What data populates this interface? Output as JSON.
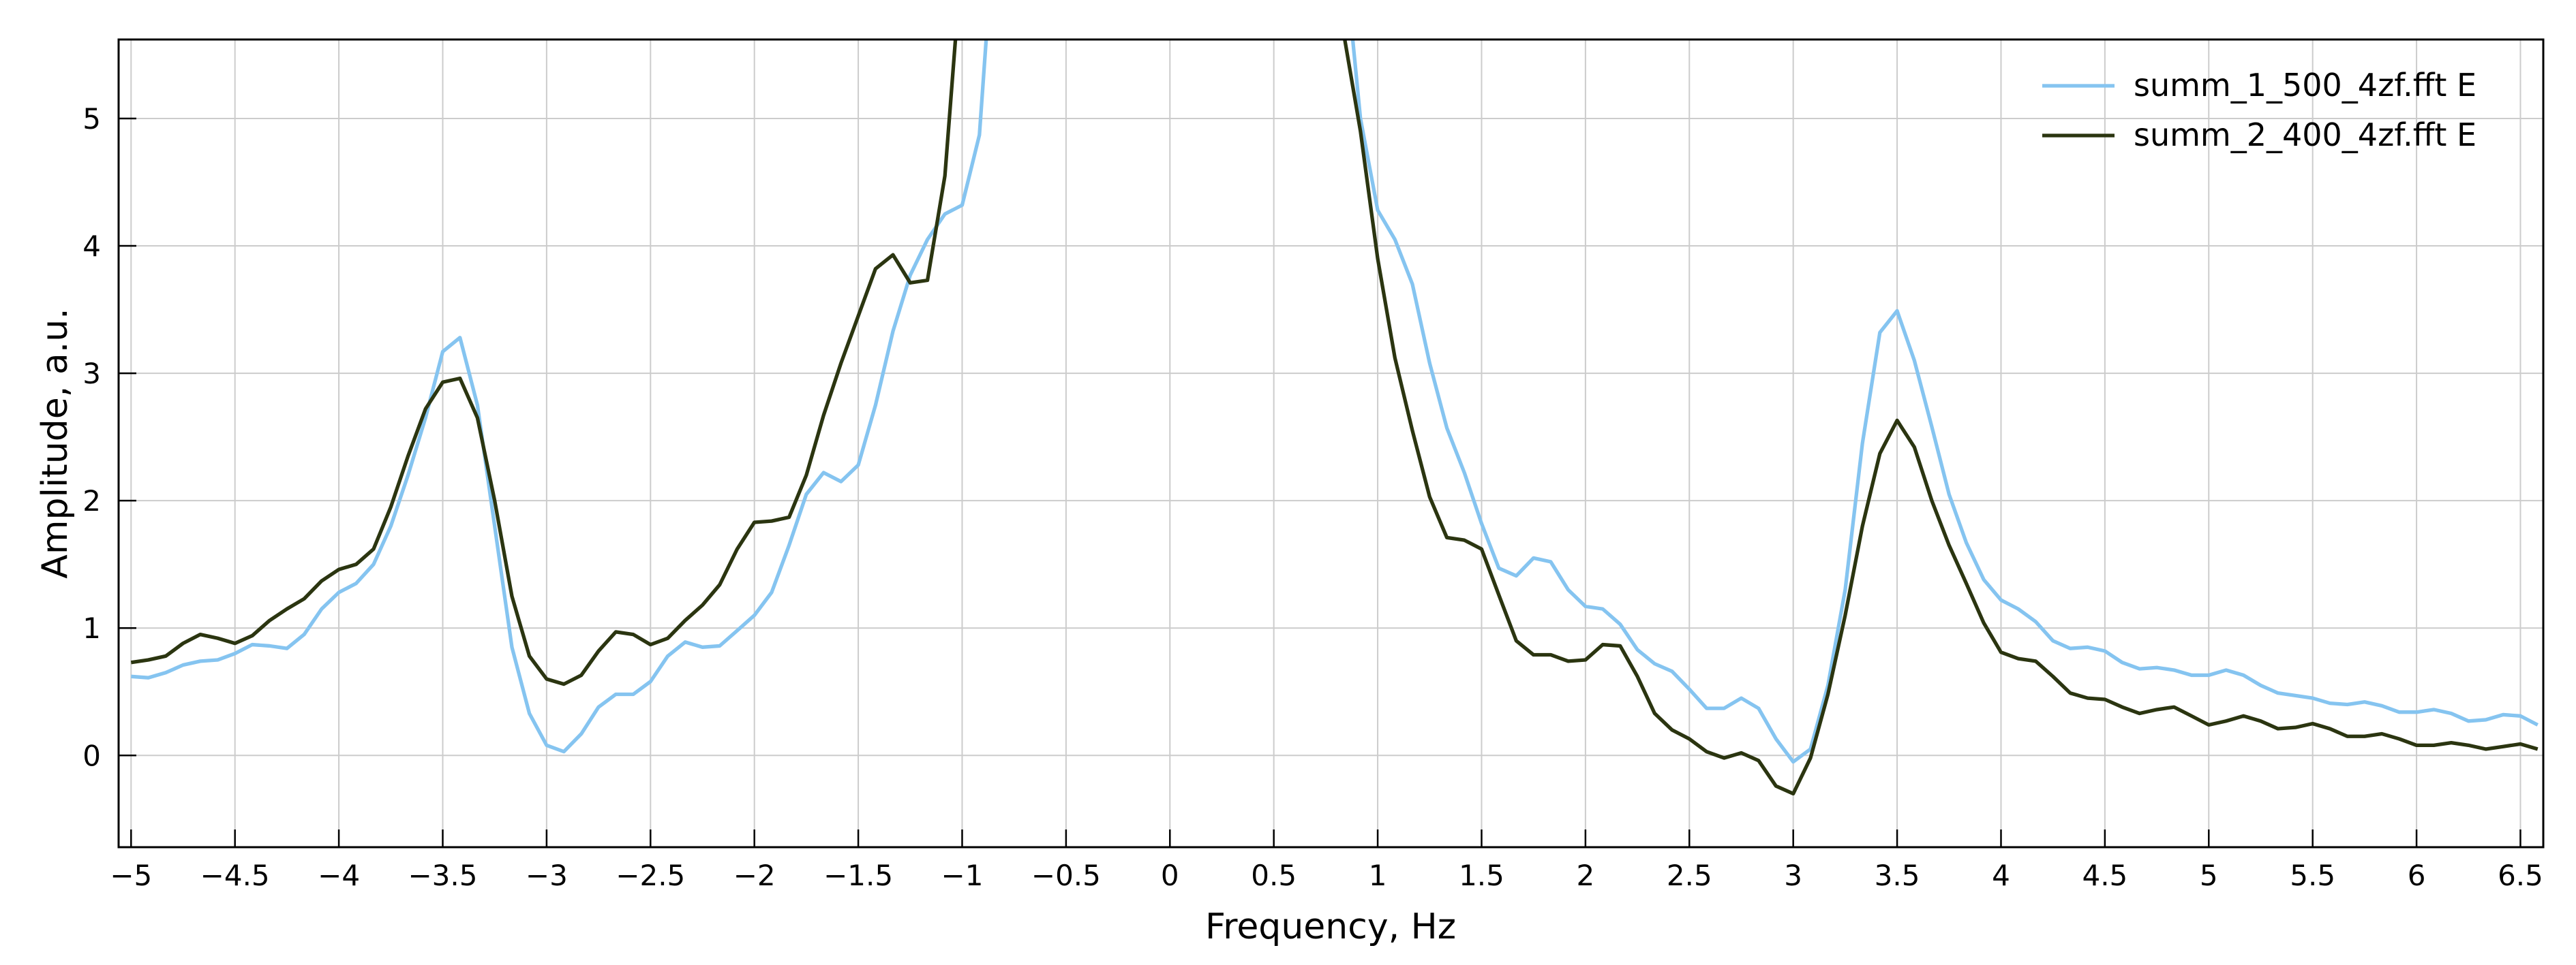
{
  "chart_data": {
    "type": "line",
    "xlabel": "Frequency, Hz",
    "ylabel": "Amplitude, a.u.",
    "x": [
      -5,
      -4.917,
      -4.833,
      -4.75,
      -4.667,
      -4.583,
      -4.5,
      -4.417,
      -4.333,
      -4.25,
      -4.167,
      -4.083,
      -4,
      -3.917,
      -3.833,
      -3.75,
      -3.667,
      -3.583,
      -3.5,
      -3.417,
      -3.333,
      -3.25,
      -3.167,
      -3.083,
      -3,
      -2.917,
      -2.833,
      -2.75,
      -2.667,
      -2.583,
      -2.5,
      -2.417,
      -2.333,
      -2.25,
      -2.167,
      -2.083,
      -2,
      -1.917,
      -1.833,
      -1.75,
      -1.667,
      -1.583,
      -1.5,
      -1.417,
      -1.333,
      -1.25,
      -1.167,
      -1.083,
      -1,
      -0.917,
      -0.833,
      -0.75,
      -0.667,
      -0.583,
      -0.5,
      -0.417,
      -0.333,
      -0.25,
      -0.167,
      -0.083,
      0,
      0.083,
      0.167,
      0.25,
      0.333,
      0.417,
      0.5,
      0.583,
      0.667,
      0.75,
      0.833,
      0.917,
      1,
      1.083,
      1.167,
      1.25,
      1.333,
      1.417,
      1.5,
      1.583,
      1.667,
      1.75,
      1.833,
      1.917,
      2,
      2.083,
      2.167,
      2.25,
      2.333,
      2.417,
      2.5,
      2.583,
      2.667,
      2.75,
      2.833,
      2.917,
      3,
      3.083,
      3.167,
      3.25,
      3.333,
      3.417,
      3.5,
      3.583,
      3.667,
      3.75,
      3.833,
      3.917,
      4,
      4.083,
      4.167,
      4.25,
      4.333,
      4.417,
      4.5,
      4.583,
      4.667,
      4.75,
      4.833,
      4.917,
      5,
      5.083,
      5.167,
      5.25,
      5.333,
      5.417,
      5.5,
      5.583,
      5.667,
      5.75,
      5.833,
      5.917,
      6,
      6.083,
      6.167,
      6.25,
      6.333,
      6.417,
      6.5,
      6.583
    ],
    "series": [
      {
        "name": "summ_1_500_4zf.fft E",
        "color": "#85c4f0",
        "values": [
          0.62,
          0.61,
          0.65,
          0.71,
          0.74,
          0.75,
          0.8,
          0.87,
          0.86,
          0.84,
          0.95,
          1.15,
          1.28,
          1.35,
          1.5,
          1.8,
          2.2,
          2.65,
          3.17,
          3.28,
          2.75,
          1.8,
          0.85,
          0.33,
          0.08,
          0.03,
          0.17,
          0.38,
          0.48,
          0.48,
          0.58,
          0.78,
          0.89,
          0.85,
          0.86,
          0.98,
          1.1,
          1.28,
          1.65,
          2.05,
          2.22,
          2.15,
          2.28,
          2.75,
          3.33,
          3.77,
          4.05,
          4.25,
          4.32,
          4.87,
          6.8,
          null,
          null,
          null,
          null,
          null,
          null,
          null,
          null,
          null,
          null,
          null,
          null,
          null,
          null,
          null,
          null,
          null,
          null,
          null,
          6.4,
          5.0,
          4.28,
          4.05,
          3.7,
          3.08,
          2.57,
          2.22,
          1.82,
          1.47,
          1.41,
          1.55,
          1.52,
          1.3,
          1.17,
          1.15,
          1.03,
          0.83,
          0.72,
          0.66,
          0.52,
          0.37,
          0.37,
          0.45,
          0.37,
          0.13,
          -0.05,
          0.05,
          0.55,
          1.3,
          2.45,
          3.32,
          3.49,
          3.1,
          2.58,
          2.05,
          1.67,
          1.38,
          1.22,
          1.15,
          1.05,
          0.9,
          0.84,
          0.85,
          0.82,
          0.73,
          0.68,
          0.69,
          0.67,
          0.63,
          0.63,
          0.67,
          0.63,
          0.55,
          0.49,
          0.47,
          0.45,
          0.41,
          0.4,
          0.42,
          0.39,
          0.34,
          0.34,
          0.36,
          0.33,
          0.27,
          0.28,
          0.32,
          0.31,
          0.24
        ]
      },
      {
        "name": "summ_2_400_4zf.fft E",
        "color": "#2b3510",
        "values": [
          0.73,
          0.75,
          0.78,
          0.88,
          0.95,
          0.92,
          0.88,
          0.94,
          1.06,
          1.15,
          1.23,
          1.37,
          1.46,
          1.5,
          1.62,
          1.95,
          2.35,
          2.72,
          2.93,
          2.96,
          2.65,
          2.0,
          1.25,
          0.78,
          0.6,
          0.56,
          0.63,
          0.82,
          0.97,
          0.95,
          0.87,
          0.92,
          1.06,
          1.18,
          1.34,
          1.62,
          1.83,
          1.84,
          1.87,
          2.2,
          2.67,
          3.08,
          3.45,
          3.82,
          3.93,
          3.71,
          3.73,
          4.55,
          6.3,
          null,
          null,
          null,
          null,
          null,
          null,
          null,
          null,
          null,
          null,
          null,
          null,
          null,
          null,
          null,
          null,
          null,
          null,
          null,
          null,
          null,
          5.7,
          4.9,
          3.9,
          3.12,
          2.55,
          2.03,
          1.71,
          1.69,
          1.62,
          1.26,
          0.9,
          0.79,
          0.79,
          0.74,
          0.75,
          0.87,
          0.86,
          0.62,
          0.33,
          0.2,
          0.13,
          0.03,
          -0.02,
          0.02,
          -0.04,
          -0.24,
          -0.3,
          -0.02,
          0.48,
          1.1,
          1.8,
          2.37,
          2.63,
          2.42,
          2.0,
          1.65,
          1.35,
          1.04,
          0.81,
          0.76,
          0.74,
          0.62,
          0.49,
          0.45,
          0.44,
          0.38,
          0.33,
          0.36,
          0.38,
          0.31,
          0.24,
          0.27,
          0.31,
          0.27,
          0.21,
          0.22,
          0.25,
          0.21,
          0.15,
          0.15,
          0.17,
          0.13,
          0.08,
          0.08,
          0.1,
          0.08,
          0.05,
          0.07,
          0.09,
          0.05
        ]
      }
    ],
    "xlim": [
      -5.06,
      6.61
    ],
    "ylim": [
      -0.72,
      5.62
    ],
    "xticks": [
      {
        "value": -5,
        "label": "−5"
      },
      {
        "value": -4.5,
        "label": "−4.5"
      },
      {
        "value": -4,
        "label": "−4"
      },
      {
        "value": -3.5,
        "label": "−3.5"
      },
      {
        "value": -3,
        "label": "−3"
      },
      {
        "value": -2.5,
        "label": "−2.5"
      },
      {
        "value": -2,
        "label": "−2"
      },
      {
        "value": -1.5,
        "label": "−1.5"
      },
      {
        "value": -1,
        "label": "−1"
      },
      {
        "value": -0.5,
        "label": "−0.5"
      },
      0,
      0.5,
      1,
      1.5,
      2,
      2.5,
      3,
      3.5,
      4,
      4.5,
      5,
      5.5,
      6,
      6.5
    ],
    "yticks": [
      0,
      1,
      2,
      3,
      4,
      5
    ],
    "grid": true,
    "legend": "upper right"
  }
}
